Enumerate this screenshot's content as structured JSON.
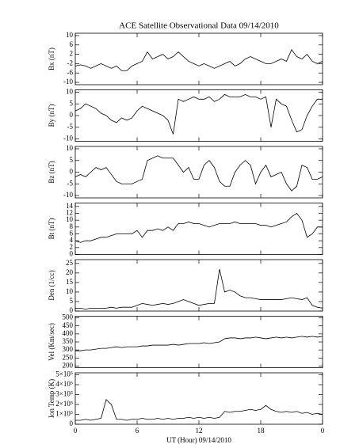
{
  "chart_data": [
    {
      "type": "line",
      "title": "ACE Satellite Observational Data   09/14/2010",
      "ylabel": "Bx (nT)",
      "color": "#000000",
      "x": [
        0,
        0.5,
        1,
        1.5,
        2,
        2.5,
        3,
        3.5,
        4,
        4.5,
        5,
        5.5,
        6,
        6.5,
        7,
        7.5,
        8,
        8.5,
        9,
        9.5,
        10,
        10.5,
        11,
        11.5,
        12,
        12.5,
        13,
        13.5,
        14,
        14.5,
        15,
        15.5,
        16,
        16.5,
        17,
        17.5,
        18,
        18.5,
        19,
        19.5,
        20,
        20.5,
        21,
        21.5,
        22,
        22.5,
        23,
        23.5,
        24
      ],
      "values": [
        -3,
        -2.5,
        -3,
        -4,
        -3,
        -2,
        -3,
        -4,
        -3,
        -5,
        -5,
        -3,
        -2,
        -1,
        3,
        0,
        1,
        2,
        0,
        1,
        3,
        1,
        -1,
        -2,
        -3,
        -2,
        -3,
        -4,
        -3,
        -2,
        -1,
        -3,
        -2,
        0,
        1,
        0,
        -1,
        -2,
        -2,
        -1,
        0,
        -1,
        4,
        1,
        0,
        2,
        -1,
        -2,
        -1
      ],
      "xlim": [
        0,
        24
      ],
      "xticks": [
        0,
        6,
        12,
        18,
        {
          "value": 24,
          "label": "0"
        }
      ],
      "ylim": [
        -11,
        11
      ],
      "yticks": [
        -10,
        -6,
        -2,
        2,
        6,
        10
      ]
    },
    {
      "type": "line",
      "ylabel": "By (nT)",
      "color": "#000000",
      "x": [
        0,
        0.5,
        1,
        1.5,
        2,
        2.5,
        3,
        3.5,
        4,
        4.5,
        5,
        5.5,
        6,
        6.5,
        7,
        7.5,
        8,
        8.5,
        9,
        9.5,
        10,
        10.5,
        11,
        11.5,
        12,
        12.5,
        13,
        13.5,
        14,
        14.5,
        15,
        15.5,
        16,
        16.5,
        17,
        17.5,
        18,
        18.5,
        19,
        19.5,
        20,
        20.5,
        21,
        21.5,
        22,
        22.5,
        23,
        23.5,
        24
      ],
      "values": [
        2,
        3,
        5,
        4,
        3,
        1,
        0,
        -2,
        -3,
        -1,
        -2,
        -1,
        2,
        4,
        3,
        2,
        1,
        0,
        -2,
        -8,
        7,
        6,
        7,
        8,
        7,
        7,
        8,
        6,
        7,
        9,
        8,
        8,
        8,
        9,
        8,
        8,
        7,
        8,
        -5,
        7,
        5,
        4,
        -2,
        -7,
        -6,
        0,
        4,
        7,
        7
      ],
      "xlim": [
        0,
        24
      ],
      "xticks": [
        0,
        6,
        12,
        18,
        {
          "value": 24,
          "label": "0"
        }
      ],
      "ylim": [
        -11,
        11
      ],
      "yticks": [
        -10,
        -5,
        0,
        5,
        10
      ]
    },
    {
      "type": "line",
      "ylabel": "Bz (nT)",
      "color": "#000000",
      "x": [
        0,
        0.5,
        1,
        1.5,
        2,
        2.5,
        3,
        3.5,
        4,
        4.5,
        5,
        5.5,
        6,
        6.5,
        7,
        7.5,
        8,
        8.5,
        9,
        9.5,
        10,
        10.5,
        11,
        11.5,
        12,
        12.5,
        13,
        13.5,
        14,
        14.5,
        15,
        15.5,
        16,
        16.5,
        17,
        17.5,
        18,
        18.5,
        19,
        19.5,
        20,
        20.5,
        21,
        21.5,
        22,
        22.5,
        23,
        23.5,
        24
      ],
      "values": [
        -2,
        -1,
        -2,
        0,
        2,
        1,
        2,
        -1,
        -4,
        -5,
        -5,
        -5,
        -4,
        -3,
        5,
        6,
        7,
        6,
        6,
        6,
        3,
        0,
        2,
        -3,
        -3,
        3,
        5,
        2,
        -4,
        -6,
        -6,
        0,
        3,
        5,
        3,
        -5,
        0,
        3,
        -2,
        -1,
        0,
        -5,
        -8,
        -6,
        3,
        2,
        -3,
        -3,
        -2
      ],
      "xlim": [
        0,
        24
      ],
      "xticks": [
        0,
        6,
        12,
        18,
        {
          "value": 24,
          "label": "0"
        }
      ],
      "ylim": [
        -11,
        11
      ],
      "yticks": [
        -10,
        -5,
        0,
        5,
        10
      ]
    },
    {
      "type": "line",
      "ylabel": "Bt (nT)",
      "color": "#000000",
      "x": [
        0,
        0.5,
        1,
        1.5,
        2,
        2.5,
        3,
        3.5,
        4,
        4.5,
        5,
        5.5,
        6,
        6.5,
        7,
        7.5,
        8,
        8.5,
        9,
        9.5,
        10,
        10.5,
        11,
        11.5,
        12,
        12.5,
        13,
        13.5,
        14,
        14.5,
        15,
        15.5,
        16,
        16.5,
        17,
        17.5,
        18,
        18.5,
        19,
        19.5,
        20,
        20.5,
        21,
        21.5,
        22,
        22.5,
        23,
        23.5,
        24
      ],
      "values": [
        4,
        3.5,
        4,
        4,
        4.5,
        5,
        5,
        5.5,
        6,
        6,
        6,
        6,
        7,
        5,
        7,
        7,
        7.5,
        7,
        8,
        7,
        9,
        9,
        9.5,
        9,
        9,
        8.5,
        8,
        8.5,
        9,
        9,
        9,
        9.5,
        9,
        9,
        9,
        9,
        8.5,
        8.5,
        8,
        8.5,
        9,
        9.5,
        11,
        12,
        10,
        5,
        6,
        8,
        8
      ],
      "xlim": [
        0,
        24
      ],
      "xticks": [
        0,
        6,
        12,
        18,
        {
          "value": 24,
          "label": "0"
        }
      ],
      "ylim": [
        0,
        15
      ],
      "yticks": [
        0,
        2,
        4,
        6,
        8,
        10,
        12,
        14
      ]
    },
    {
      "type": "line",
      "ylabel": "Den (1/cc)",
      "color": "#000000",
      "x": [
        0,
        0.5,
        1,
        1.5,
        2,
        2.5,
        3,
        3.5,
        4,
        4.5,
        5,
        5.5,
        6,
        6.5,
        7,
        7.5,
        8,
        8.5,
        9,
        9.5,
        10,
        10.5,
        11,
        11.5,
        12,
        12.5,
        13,
        13.5,
        14,
        14.5,
        15,
        15.5,
        16,
        16.5,
        17,
        17.5,
        18,
        18.5,
        19,
        19.5,
        20,
        20.5,
        21,
        21.5,
        22,
        22.5,
        23,
        23.5,
        24
      ],
      "values": [
        1.5,
        1.5,
        1,
        1.5,
        1.5,
        1.5,
        1.5,
        2,
        1.5,
        2,
        2,
        2,
        3,
        4,
        3.5,
        3,
        3.5,
        4,
        3.5,
        4,
        5,
        6,
        5,
        4,
        3,
        3.5,
        4,
        4,
        22,
        10,
        11,
        10,
        8,
        7,
        7,
        6.5,
        6,
        6,
        6,
        6,
        6,
        6.5,
        7,
        6.5,
        6,
        7,
        3,
        2,
        1.5
      ],
      "xlim": [
        0,
        24
      ],
      "xticks": [
        0,
        6,
        12,
        18,
        {
          "value": 24,
          "label": "0"
        }
      ],
      "ylim": [
        0,
        27
      ],
      "yticks": [
        0,
        5,
        10,
        15,
        20,
        25
      ]
    },
    {
      "type": "line",
      "ylabel": "Vel (Km/sec)",
      "color": "#000000",
      "x": [
        0,
        0.5,
        1,
        1.5,
        2,
        2.5,
        3,
        3.5,
        4,
        4.5,
        5,
        5.5,
        6,
        6.5,
        7,
        7.5,
        8,
        8.5,
        9,
        9.5,
        10,
        10.5,
        11,
        11.5,
        12,
        12.5,
        13,
        13.5,
        14,
        14.5,
        15,
        15.5,
        16,
        16.5,
        17,
        17.5,
        18,
        18.5,
        19,
        19.5,
        20,
        20.5,
        21,
        21.5,
        22,
        22.5,
        23,
        23.5,
        24
      ],
      "values": [
        295,
        295,
        300,
        300,
        305,
        310,
        310,
        315,
        320,
        315,
        320,
        320,
        320,
        325,
        325,
        330,
        330,
        330,
        330,
        335,
        330,
        335,
        340,
        340,
        340,
        345,
        340,
        345,
        350,
        370,
        375,
        375,
        370,
        375,
        375,
        380,
        375,
        370,
        375,
        380,
        375,
        380,
        375,
        380,
        385,
        380,
        385,
        380,
        385
      ],
      "xlim": [
        0,
        24
      ],
      "xticks": [
        0,
        6,
        12,
        18,
        {
          "value": 24,
          "label": "0"
        }
      ],
      "ylim": [
        190,
        510
      ],
      "yticks": [
        200,
        250,
        300,
        350,
        400,
        450,
        500
      ]
    },
    {
      "type": "line",
      "ylabel": "Ion Temp (K)",
      "xlabel": "UT (Hour)   09/14/2010",
      "color": "#000000",
      "x": [
        0,
        0.5,
        1,
        1.5,
        2,
        2.5,
        3,
        3.5,
        4,
        4.5,
        5,
        5.5,
        6,
        6.5,
        7,
        7.5,
        8,
        8.5,
        9,
        9.5,
        10,
        10.5,
        11,
        11.5,
        12,
        12.5,
        13,
        13.5,
        14,
        14.5,
        15,
        15.5,
        16,
        16.5,
        17,
        17.5,
        18,
        18.5,
        19,
        19.5,
        20,
        20.5,
        21,
        21.5,
        22,
        22.5,
        23,
        23.5,
        24
      ],
      "values": [
        40000,
        40000,
        50000,
        40000,
        50000,
        60000,
        250000,
        200000,
        50000,
        50000,
        40000,
        50000,
        50000,
        60000,
        50000,
        50000,
        60000,
        50000,
        60000,
        50000,
        60000,
        60000,
        70000,
        60000,
        70000,
        60000,
        70000,
        60000,
        70000,
        130000,
        120000,
        130000,
        130000,
        140000,
        150000,
        140000,
        150000,
        190000,
        150000,
        130000,
        120000,
        130000,
        120000,
        130000,
        110000,
        120000,
        100000,
        110000,
        100000
      ],
      "xlim": [
        0,
        24
      ],
      "xticks": [
        0,
        6,
        12,
        18,
        {
          "value": 24,
          "label": "0"
        }
      ],
      "ylim": [
        0,
        520000
      ],
      "yticks": [
        0,
        {
          "value": 100000,
          "label": "1×10⁵"
        },
        {
          "value": 200000,
          "label": "2×10⁵"
        },
        {
          "value": 300000,
          "label": "3×10⁵"
        },
        {
          "value": 400000,
          "label": "4×10⁵"
        },
        {
          "value": 500000,
          "label": "5×10⁵"
        }
      ]
    }
  ]
}
